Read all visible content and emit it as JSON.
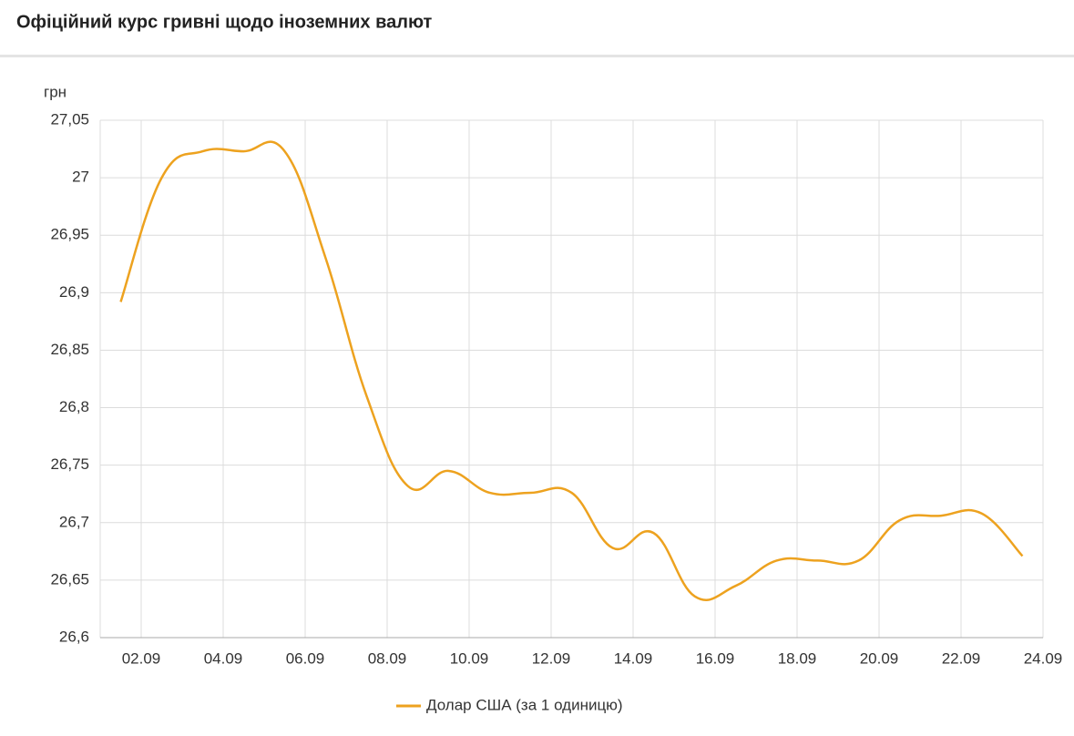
{
  "chart_data": {
    "type": "line",
    "title": "Офіційний курс гривні щодо іноземних валют",
    "y_label": "грн",
    "categories": [
      null,
      "02.09",
      null,
      "04.09",
      null,
      "06.09",
      null,
      "08.09",
      null,
      "10.09",
      null,
      "12.09",
      null,
      "14.09",
      null,
      "16.09",
      null,
      "18.09",
      null,
      "20.09",
      null,
      "22.09",
      null,
      "24.09"
    ],
    "series": [
      {
        "name": "Долар США (за 1 одиницю)",
        "color": "#eda21f",
        "values": [
          26.892,
          27.0,
          27.023,
          27.023,
          27.023,
          26.93,
          26.81,
          26.732,
          26.745,
          26.726,
          26.726,
          26.726,
          26.678,
          26.691,
          26.636,
          26.645,
          26.667,
          26.667,
          26.667,
          26.702,
          26.706,
          26.708,
          26.671,
          null
        ]
      }
    ],
    "ylim": [
      26.6,
      27.05
    ],
    "yticks": [
      {
        "value": 26.6,
        "label": "26,6"
      },
      {
        "value": 26.65,
        "label": "26,65"
      },
      {
        "value": 26.7,
        "label": "26,7"
      },
      {
        "value": 26.75,
        "label": "26,75"
      },
      {
        "value": 26.8,
        "label": "26,8"
      },
      {
        "value": 26.85,
        "label": "26,85"
      },
      {
        "value": 26.9,
        "label": "26,9"
      },
      {
        "value": 26.95,
        "label": "26,95"
      },
      27,
      {
        "value": 27.05,
        "label": "27,05"
      }
    ],
    "grid": true,
    "legend": "bottom"
  }
}
